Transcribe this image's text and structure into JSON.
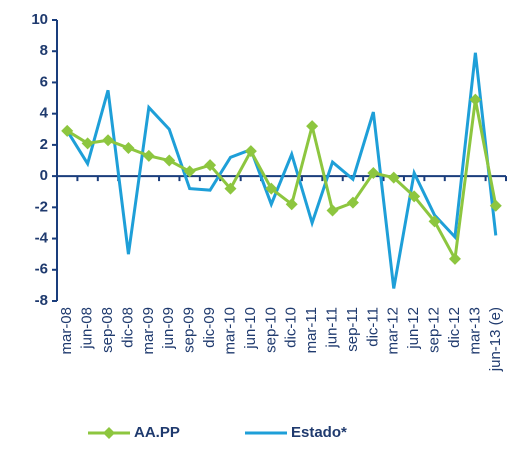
{
  "chart_data": {
    "type": "line",
    "categories": [
      "mar-08",
      "jun-08",
      "sep-08",
      "dic-08",
      "mar-09",
      "jun-09",
      "sep-09",
      "dic-09",
      "mar-10",
      "jun-10",
      "sep-10",
      "dic-10",
      "mar-11",
      "jun-11",
      "sep-11",
      "dic-11",
      "mar-12",
      "jun-12",
      "sep-12",
      "dic-12",
      "mar-13",
      "jun-13 (e)"
    ],
    "series": [
      {
        "name": "AA.PP",
        "color": "#8dc63f",
        "marker": "diamond",
        "values": [
          2.9,
          2.1,
          2.3,
          1.8,
          1.3,
          1.0,
          0.3,
          0.7,
          -0.8,
          1.6,
          -0.8,
          -1.8,
          3.2,
          -2.2,
          -1.7,
          0.2,
          -0.1,
          -1.3,
          -2.9,
          -5.3,
          4.9,
          -1.9
        ]
      },
      {
        "name": "Estado*",
        "color": "#1e9fd8",
        "values": [
          2.9,
          0.8,
          5.5,
          -5.0,
          4.4,
          3.0,
          -0.8,
          -0.9,
          1.2,
          1.7,
          -1.8,
          1.4,
          -3.0,
          0.9,
          -0.2,
          4.1,
          -7.2,
          0.2,
          -2.5,
          -3.9,
          7.9,
          -3.8
        ]
      }
    ],
    "ylim": [
      -8,
      10
    ],
    "yticks": [
      -8,
      -6,
      -4,
      -2,
      0,
      2,
      4,
      6,
      8,
      10
    ],
    "grid": false
  }
}
